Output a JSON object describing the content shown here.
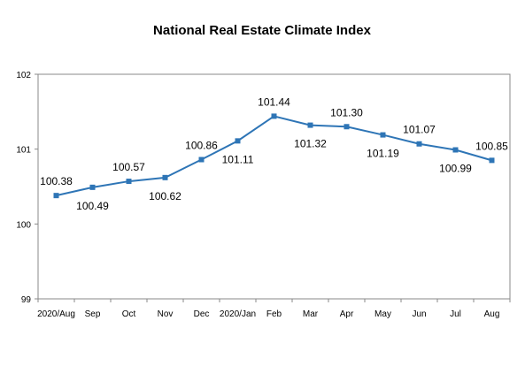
{
  "chart_data": {
    "type": "line",
    "title": "National Real Estate Climate Index",
    "xlabel": "",
    "ylabel": "",
    "categories": [
      "2020/Aug",
      "Sep",
      "Oct",
      "Nov",
      "Dec",
      "2020/Jan",
      "Feb",
      "Mar",
      "Apr",
      "May",
      "Jun",
      "Jul",
      "Aug"
    ],
    "series": [
      {
        "values": [
          100.38,
          100.49,
          100.57,
          100.62,
          100.86,
          101.11,
          101.44,
          101.32,
          101.3,
          101.19,
          101.07,
          100.99,
          100.85
        ],
        "color": "#2E75B6"
      }
    ],
    "data_labels": [
      "100.38",
      "100.49",
      "100.57",
      "100.62",
      "100.86",
      "101.11",
      "101.44",
      "101.32",
      "101.30",
      "101.19",
      "101.07",
      "100.99",
      "100.85"
    ],
    "y_ticks": [
      "99",
      "100",
      "101",
      "102"
    ],
    "ylim": [
      99,
      102
    ],
    "grid": false,
    "legend": "none"
  }
}
